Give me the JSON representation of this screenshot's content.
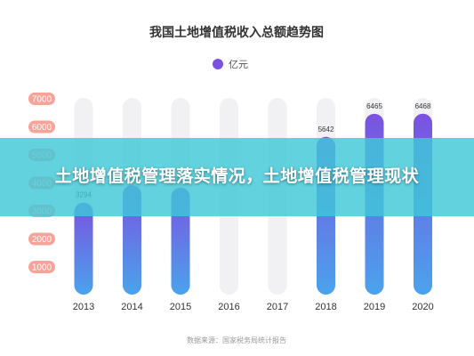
{
  "chart_data": {
    "type": "bar",
    "title": "我国土地增值税收入总额趋势图",
    "categories": [
      "2013",
      "2014",
      "2015",
      "2016",
      "2017",
      "2018",
      "2019",
      "2020"
    ],
    "series": [
      {
        "name": "亿元",
        "values": [
          3294,
          3914,
          3832,
          null,
          null,
          5642,
          6465,
          6468
        ],
        "data_labels": [
          "3294",
          "3914",
          "3832",
          "",
          "",
          "5642",
          "6465",
          "6468"
        ]
      }
    ],
    "yticks": [
      "1000",
      "2000",
      "3000",
      "4000",
      "5000",
      "6000",
      "7000"
    ],
    "ylim": [
      0,
      7500
    ],
    "xlabel": "",
    "ylabel": "",
    "legend_position": "top-center",
    "grid": false,
    "source_text": "数据来源：国家税务局统计报告",
    "colors": {
      "bar_top": "#7b52e0",
      "bar_bottom": "#4aa3ec",
      "bar_track": "#f1f1f4",
      "ytick_badge": "#f7a39a",
      "legend_dot": "#7b52e0"
    }
  },
  "overlay": {
    "banner_text": "土地增值税管理落实情况，土地增值税管理现状"
  }
}
